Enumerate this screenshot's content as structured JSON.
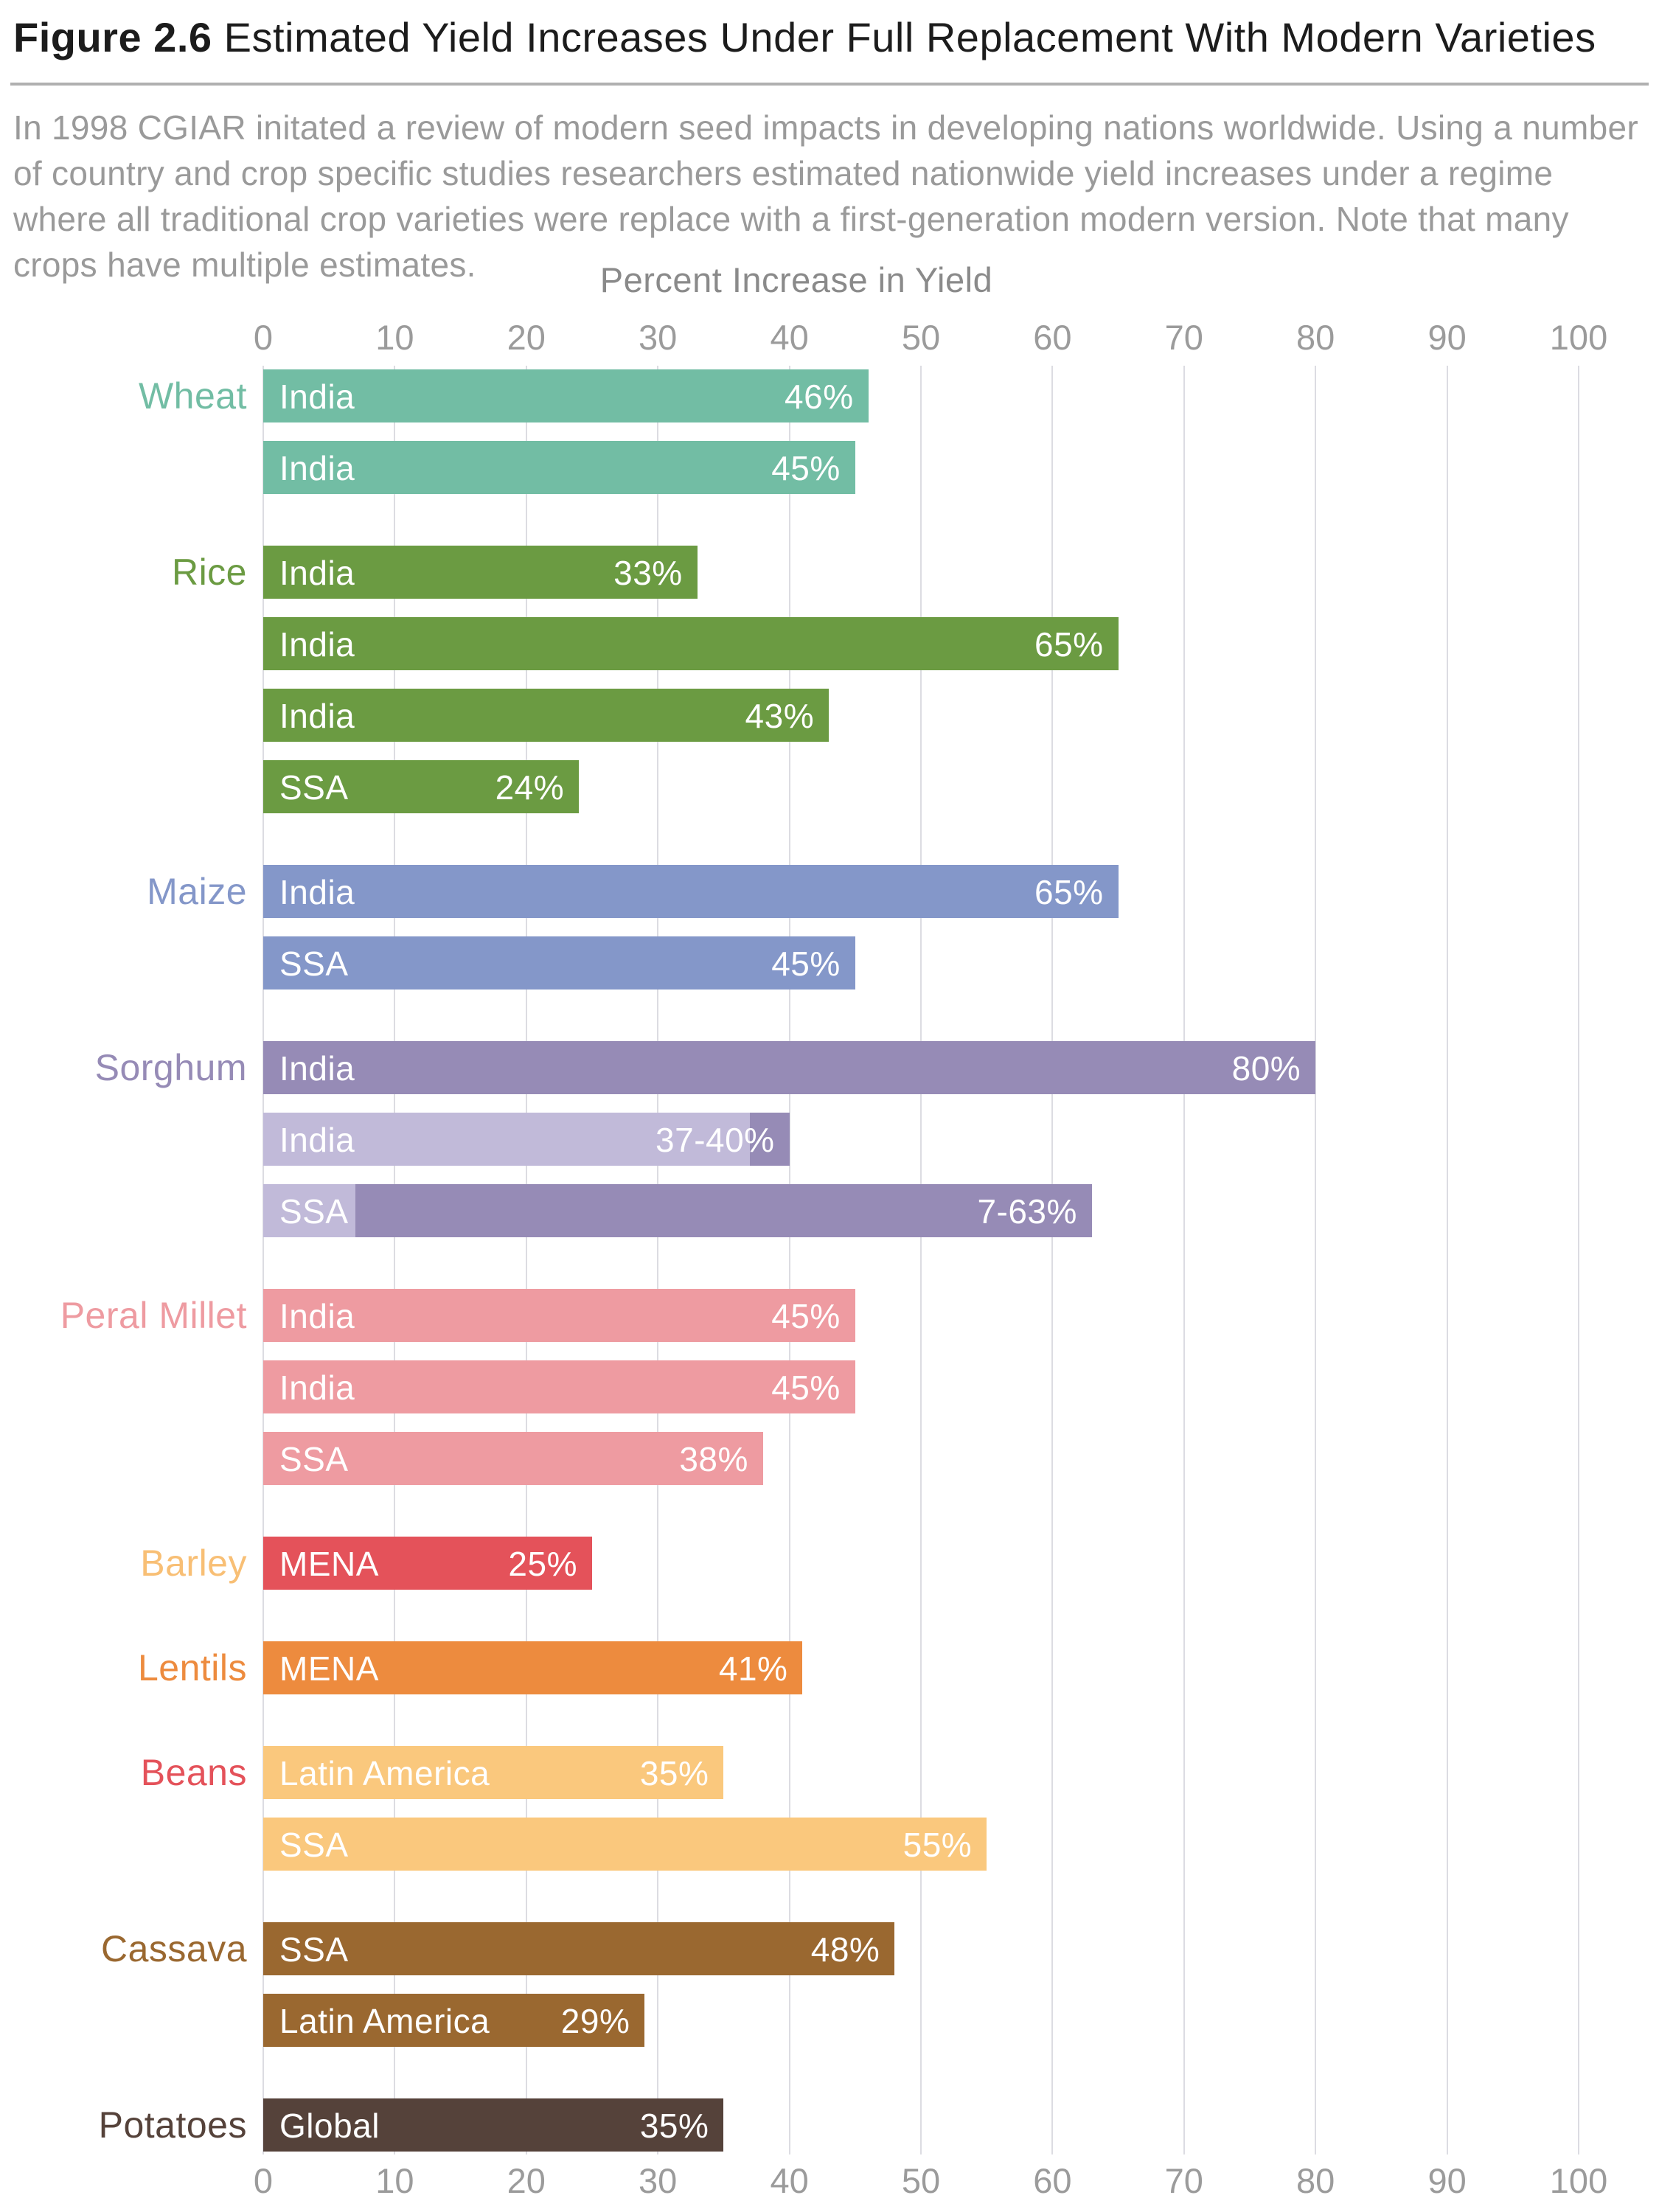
{
  "title": {
    "prefix": "Figure 2.6",
    "rest": " Estimated Yield Increases Under Full Replacement With Modern Varieties"
  },
  "description": "In 1998 CGIAR initated a review of modern seed impacts in developing nations worldwide. Using a number of country and crop specific studies researchers estimated nationwide yield increases under a regime where all traditional crop varieties were replace with a first-generation modern version. Note that many crops have multiple estimates.",
  "colors": {
    "grid": "#dcdce2",
    "tick_text": "#9b9b9b",
    "axis_title_text": "#8a8a8a",
    "bar_text": "#ffffff"
  },
  "chart_data": {
    "type": "bar",
    "orientation": "horizontal",
    "axis_title": "Percent Increase in Yield",
    "xlabel": "Percent Increase in Yield",
    "ylabel": "",
    "xlim": [
      0,
      100
    ],
    "x_ticks": [
      0,
      10,
      20,
      30,
      40,
      50,
      60,
      70,
      80,
      90,
      100
    ],
    "grid": true,
    "groups": [
      {
        "crop": "Wheat",
        "label_color": "#72bda4",
        "color": "#72bda4",
        "bars": [
          {
            "region": "India",
            "value": 46,
            "label": "46%"
          },
          {
            "region": "India",
            "value": 45,
            "label": "45%"
          }
        ]
      },
      {
        "crop": "Rice",
        "label_color": "#6b9b42",
        "color": "#6b9b42",
        "bars": [
          {
            "region": "India",
            "value": 33,
            "label": "33%"
          },
          {
            "region": "India",
            "value": 65,
            "label": "65%"
          },
          {
            "region": "India",
            "value": 43,
            "label": "43%"
          },
          {
            "region": "SSA",
            "value": 24,
            "label": "24%"
          }
        ]
      },
      {
        "crop": "Maize",
        "label_color": "#8497c9",
        "color": "#8497c9",
        "bars": [
          {
            "region": "India",
            "value": 65,
            "label": "65%"
          },
          {
            "region": "SSA",
            "value": 45,
            "label": "45%"
          }
        ]
      },
      {
        "crop": "Sorghum",
        "label_color": "#968bb6",
        "color": "#968bb6",
        "range_base_color": "#c1bad9",
        "bars": [
          {
            "region": "India",
            "value": 80,
            "label": "80%"
          },
          {
            "region": "India",
            "value": 40,
            "value_low": 37,
            "label": "37-40%",
            "range": true
          },
          {
            "region": "SSA",
            "value": 63,
            "value_low": 7,
            "label": "7-63%",
            "range": true
          }
        ]
      },
      {
        "crop": "Peral Millet",
        "label_color": "#ee9ba1",
        "color": "#ee9ba1",
        "bars": [
          {
            "region": "India",
            "value": 45,
            "label": "45%"
          },
          {
            "region": "India",
            "value": 45,
            "label": "45%"
          },
          {
            "region": "SSA",
            "value": 38,
            "label": "38%"
          }
        ]
      },
      {
        "crop": "Barley",
        "label_color": "#f8bf75",
        "color": "#e4525a",
        "bars": [
          {
            "region": "MENA",
            "value": 25,
            "label": "25%"
          }
        ]
      },
      {
        "crop": "Lentils",
        "label_color": "#ed8b3e",
        "color": "#ed8b3e",
        "bars": [
          {
            "region": "MENA",
            "value": 41,
            "label": "41%"
          }
        ]
      },
      {
        "crop": "Beans",
        "label_color": "#e4525a",
        "color": "#fac87d",
        "bars": [
          {
            "region": "Latin America",
            "value": 35,
            "label": "35%"
          },
          {
            "region": "SSA",
            "value": 55,
            "label": "55%"
          }
        ]
      },
      {
        "crop": "Cassava",
        "label_color": "#9a6830",
        "color": "#9a6830",
        "bars": [
          {
            "region": "SSA",
            "value": 48,
            "label": "48%"
          },
          {
            "region": "Latin America",
            "value": 29,
            "label": "29%"
          }
        ]
      },
      {
        "crop": "Potatoes",
        "label_color": "#55423a",
        "color": "#55423a",
        "bars": [
          {
            "region": "Global",
            "value": 35,
            "label": "35%"
          }
        ]
      }
    ]
  }
}
